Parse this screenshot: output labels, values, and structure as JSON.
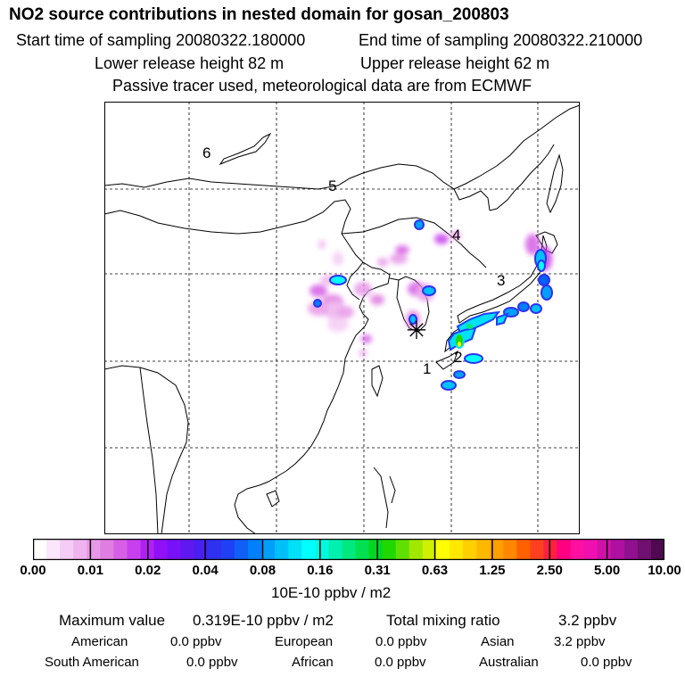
{
  "header": {
    "title": "NO2 source contributions in nested domain for gosan_200803",
    "start_time": "Start time of sampling 20080322.180000",
    "end_time": "End time of sampling 20080322.210000",
    "lower_release": "Lower release height   82 m",
    "upper_release": "Upper release height   62 m",
    "note": "Passive tracer used, meteorological data are from ECMWF"
  },
  "map": {
    "region_labels": [
      "1",
      "2",
      "3",
      "4",
      "5",
      "6"
    ],
    "receptor_symbol": "✳"
  },
  "colorbar": {
    "ticks": [
      "0.00",
      "0.01",
      "0.02",
      "0.04",
      "0.08",
      "0.16",
      "0.31",
      "0.63",
      "1.25",
      "2.50",
      "5.00",
      "10.00"
    ],
    "colors": [
      "#ffffff",
      "#fbe6fb",
      "#f5ccf5",
      "#efb3ef",
      "#e898e8",
      "#e07de0",
      "#d65fe6",
      "#c840ee",
      "#b020f5",
      "#9010f8",
      "#7810f8",
      "#6018f0",
      "#4820f0",
      "#3030f0",
      "#2040f5",
      "#1060f8",
      "#0080fa",
      "#00a0fa",
      "#00c0fa",
      "#00e0f8",
      "#00ffff",
      "#00fae0",
      "#00f0b0",
      "#00e880",
      "#00e050",
      "#00d820",
      "#20d800",
      "#60e000",
      "#a0e800",
      "#d0f000",
      "#ffff00",
      "#ffe800",
      "#ffd000",
      "#ffb800",
      "#ffa000",
      "#ff8800",
      "#ff6000",
      "#ff4020",
      "#ff2040",
      "#ff0080",
      "#ff10a0",
      "#f010b0",
      "#d010a8",
      "#b010a0",
      "#901090",
      "#701070",
      "#500850"
    ],
    "unit": "10E-10 ppbv / m2"
  },
  "summary": {
    "max_label": "Maximum value",
    "max_value": "0.319E-10 ppbv / m2",
    "mix_label": "Total mixing ratio",
    "mix_value": "3.2 ppbv",
    "regions_row1": [
      {
        "name": "American",
        "value": "0.0 ppbv"
      },
      {
        "name": "European",
        "value": "0.0 ppbv"
      },
      {
        "name": "Asian",
        "value": "3.2 ppbv"
      }
    ],
    "regions_row2": [
      {
        "name": "South American",
        "value": "0.0 ppbv"
      },
      {
        "name": "African",
        "value": "0.0 ppbv"
      },
      {
        "name": "Australian",
        "value": "0.0 ppbv"
      }
    ]
  }
}
